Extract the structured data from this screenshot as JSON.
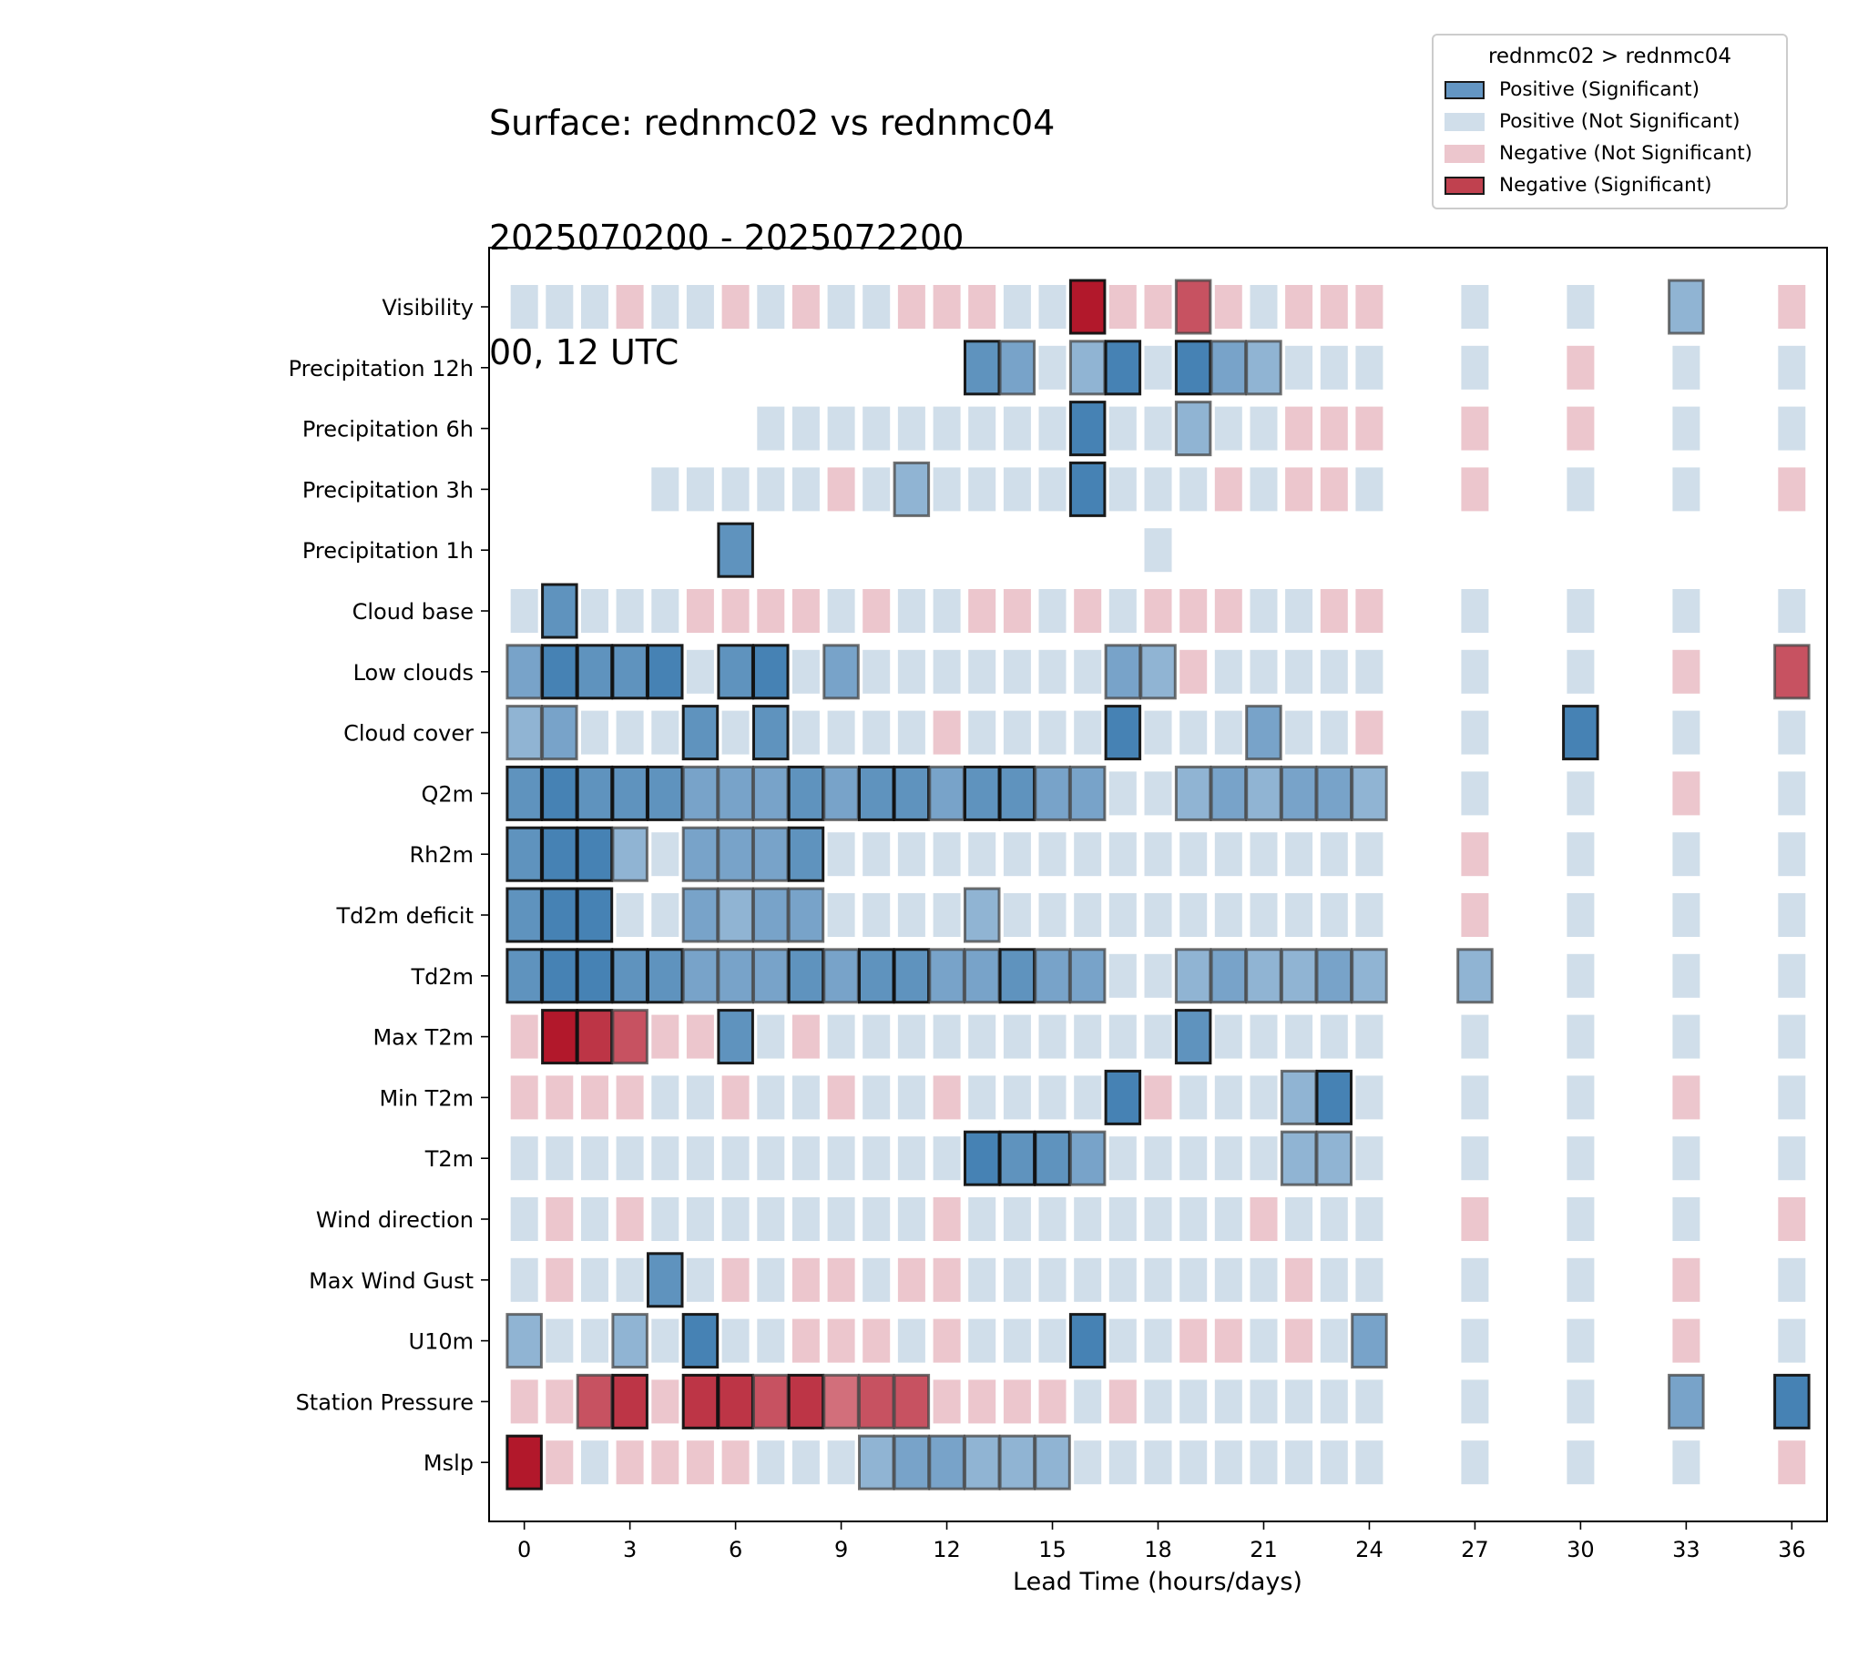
{
  "title_lines": [
    "Surface: rednmc02 vs rednmc04",
    "2025070200 - 2025072200",
    "00, 12 UTC"
  ],
  "legend": {
    "title": "rednmc02 > rednmc04",
    "items": [
      {
        "label": "Positive (Significant)",
        "color": "#4682b4",
        "significant": true
      },
      {
        "label": "Positive (Not Significant)",
        "color": "#d0deea",
        "significant": false
      },
      {
        "label": "Negative (Not Significant)",
        "color": "#ecc6cd",
        "significant": false
      },
      {
        "label": "Negative (Significant)",
        "color": "#b2182b",
        "significant": true
      }
    ]
  },
  "chart_data": {
    "type": "heatmap",
    "xlabel": "Lead Time (hours/days)",
    "ylabel": "",
    "xlim": [
      -1,
      37
    ],
    "xticks": [
      0,
      3,
      6,
      9,
      12,
      15,
      18,
      21,
      24,
      27,
      30,
      33,
      36
    ],
    "x": [
      0,
      1,
      2,
      3,
      4,
      5,
      6,
      7,
      8,
      9,
      10,
      11,
      12,
      13,
      14,
      15,
      16,
      17,
      18,
      19,
      20,
      21,
      22,
      23,
      24,
      27,
      30,
      33,
      36
    ],
    "legend_position": "top-right",
    "encoding": {
      "ns_pos": "Positive (Not Significant)",
      "ns_neg": "Negative (Not Significant)",
      "sig_pos": "Positive (Significant), shade level 1-5",
      "sig_neg": "Negative (Significant), shade level 1-5"
    },
    "rows": [
      {
        "name": "Visibility",
        "cells": [
          "+",
          "+",
          "+",
          "-",
          "+",
          "+",
          "-",
          "+",
          "-",
          "+",
          "+",
          "-",
          "-",
          "-",
          "+",
          "+",
          "N5",
          "-",
          "-",
          "N3",
          "-",
          "+",
          "-",
          "-",
          "-",
          "+",
          "+",
          "P2",
          "-"
        ]
      },
      {
        "name": "Precipitation 12h",
        "cells": [
          null,
          null,
          null,
          null,
          null,
          null,
          null,
          null,
          null,
          null,
          null,
          null,
          null,
          "P4",
          "P3",
          "+",
          "P2",
          "P5",
          "+",
          "P5",
          "P3",
          "P2",
          "+",
          "+",
          "+",
          "+",
          "-",
          "+",
          "+"
        ]
      },
      {
        "name": "Precipitation 6h",
        "cells": [
          null,
          null,
          null,
          null,
          null,
          null,
          null,
          "+",
          "+",
          "+",
          "+",
          "+",
          "+",
          "+",
          "+",
          "+",
          "P5",
          "+",
          "+",
          "P2",
          "+",
          "+",
          "-",
          "-",
          "-",
          "-",
          "-",
          "+",
          "+"
        ]
      },
      {
        "name": "Precipitation 3h",
        "cells": [
          null,
          null,
          null,
          null,
          "+",
          "+",
          "+",
          "+",
          "+",
          "-",
          "+",
          "P2",
          "+",
          "+",
          "+",
          "+",
          "P5",
          "+",
          "+",
          "+",
          "-",
          "+",
          "-",
          "-",
          "+",
          "-",
          "+",
          "+",
          "-"
        ]
      },
      {
        "name": "Precipitation 1h",
        "cells": [
          null,
          null,
          null,
          null,
          null,
          null,
          "P4",
          null,
          null,
          null,
          null,
          null,
          null,
          null,
          null,
          null,
          null,
          null,
          "+",
          null,
          null,
          null,
          null,
          null,
          null,
          null,
          null,
          null,
          null
        ]
      },
      {
        "name": "Cloud base",
        "cells": [
          "+",
          "P4",
          "+",
          "+",
          "+",
          "-",
          "-",
          "-",
          "-",
          "+",
          "-",
          "+",
          "+",
          "-",
          "-",
          "+",
          "-",
          "+",
          "-",
          "-",
          "-",
          "+",
          "+",
          "-",
          "-",
          "+",
          "+",
          "+",
          "+"
        ]
      },
      {
        "name": "Low clouds",
        "cells": [
          "P3",
          "P5",
          "P4",
          "P4",
          "P5",
          "+",
          "P4",
          "P5",
          "+",
          "P3",
          "+",
          "+",
          "+",
          "+",
          "+",
          "+",
          "+",
          "P3",
          "P2",
          "-",
          "+",
          "+",
          "+",
          "+",
          "+",
          "+",
          "+",
          "-",
          "N3"
        ]
      },
      {
        "name": "Cloud cover",
        "cells": [
          "P2",
          "P3",
          "+",
          "+",
          "+",
          "P4",
          "+",
          "P4",
          "+",
          "+",
          "+",
          "+",
          "-",
          "+",
          "+",
          "+",
          "+",
          "P5",
          "+",
          "+",
          "+",
          "P3",
          "+",
          "+",
          "-",
          "+",
          "P5",
          "+",
          "+"
        ]
      },
      {
        "name": "Q2m",
        "cells": [
          "P4",
          "P5",
          "P4",
          "P4",
          "P4",
          "P3",
          "P3",
          "P3",
          "P4",
          "P3",
          "P4",
          "P4",
          "P3",
          "P4",
          "P4",
          "P3",
          "P3",
          "+",
          "+",
          "P2",
          "P3",
          "P2",
          "P3",
          "P3",
          "P2",
          "+",
          "+",
          "-",
          "+"
        ]
      },
      {
        "name": "Rh2m",
        "cells": [
          "P4",
          "P5",
          "P5",
          "P2",
          "+",
          "P3",
          "P3",
          "P3",
          "P4",
          "+",
          "+",
          "+",
          "+",
          "+",
          "+",
          "+",
          "+",
          "+",
          "+",
          "+",
          "+",
          "+",
          "+",
          "+",
          "+",
          "-",
          "+",
          "+",
          "+"
        ]
      },
      {
        "name": "Td2m deficit",
        "cells": [
          "P4",
          "P5",
          "P5",
          "+",
          "+",
          "P3",
          "P2",
          "P3",
          "P3",
          "+",
          "+",
          "+",
          "+",
          "P2",
          "+",
          "+",
          "+",
          "+",
          "+",
          "+",
          "+",
          "+",
          "+",
          "+",
          "+",
          "-",
          "+",
          "+",
          "+"
        ]
      },
      {
        "name": "Td2m",
        "cells": [
          "P4",
          "P5",
          "P5",
          "P4",
          "P4",
          "P3",
          "P3",
          "P3",
          "P4",
          "P3",
          "P4",
          "P4",
          "P3",
          "P3",
          "P4",
          "P3",
          "P3",
          "+",
          "+",
          "P2",
          "P3",
          "P2",
          "P2",
          "P3",
          "P2",
          "P2",
          "+",
          "+",
          "+"
        ]
      },
      {
        "name": "Max T2m",
        "cells": [
          "-",
          "N5",
          "N4",
          "N3",
          "-",
          "-",
          "P4",
          "+",
          "-",
          "+",
          "+",
          "+",
          "+",
          "+",
          "+",
          "+",
          "+",
          "+",
          "+",
          "P4",
          "+",
          "+",
          "+",
          "+",
          "+",
          "+",
          "+",
          "+",
          "+"
        ]
      },
      {
        "name": "Min T2m",
        "cells": [
          "-",
          "-",
          "-",
          "-",
          "+",
          "+",
          "-",
          "+",
          "+",
          "-",
          "+",
          "+",
          "-",
          "+",
          "+",
          "+",
          "+",
          "P5",
          "-",
          "+",
          "+",
          "+",
          "P2",
          "P5",
          "+",
          "+",
          "+",
          "-",
          "+"
        ]
      },
      {
        "name": "T2m",
        "cells": [
          "+",
          "+",
          "+",
          "+",
          "+",
          "+",
          "+",
          "+",
          "+",
          "+",
          "+",
          "+",
          "+",
          "P5",
          "P4",
          "P4",
          "P3",
          "+",
          "+",
          "+",
          "+",
          "+",
          "P2",
          "P2",
          "+",
          "+",
          "+",
          "+",
          "+"
        ]
      },
      {
        "name": "Wind direction",
        "cells": [
          "+",
          "-",
          "+",
          "-",
          "+",
          "+",
          "+",
          "+",
          "+",
          "+",
          "+",
          "+",
          "-",
          "+",
          "+",
          "+",
          "+",
          "+",
          "+",
          "+",
          "+",
          "-",
          "+",
          "+",
          "+",
          "-",
          "+",
          "+",
          "-"
        ]
      },
      {
        "name": "Max Wind Gust",
        "cells": [
          "+",
          "-",
          "+",
          "+",
          "P4",
          "+",
          "-",
          "+",
          "-",
          "-",
          "+",
          "-",
          "-",
          "+",
          "+",
          "+",
          "+",
          "+",
          "+",
          "+",
          "+",
          "+",
          "-",
          "+",
          "+",
          "+",
          "+",
          "-",
          "+"
        ]
      },
      {
        "name": "U10m",
        "cells": [
          "P2",
          "+",
          "+",
          "P2",
          "+",
          "P5",
          "+",
          "+",
          "-",
          "-",
          "-",
          "+",
          "-",
          "+",
          "+",
          "+",
          "P5",
          "+",
          "+",
          "-",
          "-",
          "+",
          "-",
          "+",
          "P3",
          "+",
          "+",
          "-",
          "+"
        ]
      },
      {
        "name": "Station Pressure",
        "cells": [
          "-",
          "-",
          "N3",
          "N4",
          "-",
          "N4",
          "N4",
          "N3",
          "N4",
          "N2",
          "N3",
          "N3",
          "-",
          "-",
          "-",
          "-",
          "+",
          "-",
          "+",
          "+",
          "+",
          "+",
          "+",
          "+",
          "+",
          "+",
          "+",
          "P3",
          "P5"
        ]
      },
      {
        "name": "Mslp",
        "cells": [
          "N5",
          "-",
          "+",
          "-",
          "-",
          "-",
          "-",
          "+",
          "+",
          "+",
          "P2",
          "P3",
          "P3",
          "P2",
          "P2",
          "P2",
          "+",
          "+",
          "+",
          "+",
          "+",
          "+",
          "+",
          "+",
          "+",
          "+",
          "+",
          "+",
          "-"
        ]
      }
    ]
  }
}
